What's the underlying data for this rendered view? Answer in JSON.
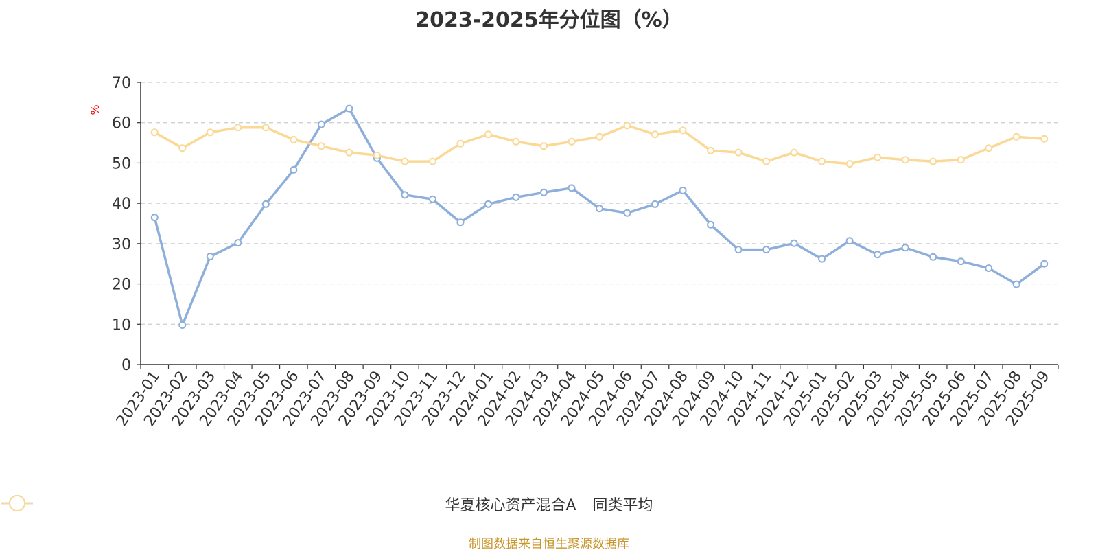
{
  "chart_data": {
    "type": "line",
    "title": "2023-2025年分位图（%）",
    "ylabel": "%",
    "ylim": [
      0,
      70
    ],
    "yticks": [
      0,
      10,
      20,
      30,
      40,
      50,
      60,
      70
    ],
    "grid": true,
    "legend_position": "bottom",
    "categories": [
      "2023-01",
      "2023-02",
      "2023-03",
      "2023-04",
      "2023-05",
      "2023-06",
      "2023-07",
      "2023-08",
      "2023-09",
      "2023-10",
      "2023-11",
      "2023-12",
      "2024-01",
      "2024-02",
      "2024-03",
      "2024-04",
      "2024-05",
      "2024-06",
      "2024-07",
      "2024-08",
      "2024-09",
      "2024-10",
      "2024-11",
      "2024-12",
      "2025-01",
      "2025-02",
      "2025-03",
      "2025-04",
      "2025-05",
      "2025-06",
      "2025-07",
      "2025-08",
      "2025-09"
    ],
    "series": [
      {
        "name": "华夏核心资产混合A",
        "color": "#8eaedb",
        "values": [
          36.5,
          9.8,
          26.8,
          30.2,
          39.8,
          48.3,
          59.6,
          63.5,
          51.2,
          42.1,
          41.0,
          35.3,
          39.8,
          41.5,
          42.7,
          43.8,
          38.7,
          37.6,
          39.8,
          43.2,
          34.7,
          28.5,
          28.5,
          30.1,
          26.2,
          30.7,
          27.3,
          29.0,
          26.7,
          25.6,
          23.9,
          19.9,
          25.0
        ]
      },
      {
        "name": "同类平均",
        "color": "#fad996",
        "values": [
          57.6,
          53.7,
          57.6,
          58.8,
          58.8,
          55.8,
          54.2,
          52.6,
          51.9,
          50.4,
          50.4,
          54.8,
          57.1,
          55.3,
          54.2,
          55.3,
          56.5,
          59.3,
          57.1,
          58.1,
          53.1,
          52.6,
          50.4,
          52.6,
          50.4,
          49.8,
          51.4,
          50.8,
          50.4,
          50.8,
          53.7,
          56.5,
          56.0
        ]
      }
    ]
  },
  "footer": {
    "source": "制图数据来自恒生聚源数据库"
  }
}
